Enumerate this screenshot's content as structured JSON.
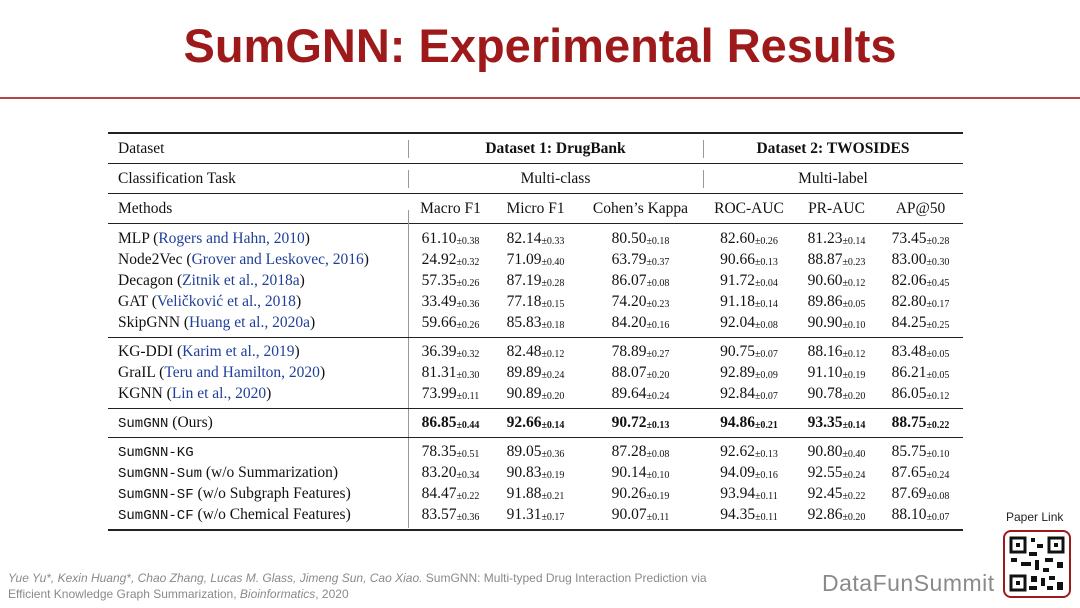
{
  "header": {
    "title": "SumGNN: Experimental Results"
  },
  "table": {
    "head": [
      {
        "cells": [
          "Dataset",
          "Dataset 1: DrugBank",
          "Dataset 2: TWOSIDES"
        ],
        "bold": true
      },
      {
        "cells": [
          "Classification Task",
          "Multi-class",
          "Multi-label"
        ]
      },
      {
        "cells": [
          "Methods",
          "Macro F1",
          "Micro F1",
          "Cohen’s Kappa",
          "ROC-AUC",
          "PR-AUC",
          "AP@50"
        ]
      }
    ],
    "groups": [
      {
        "rows": [
          {
            "method": [
              {
                "text": "MLP ("
              },
              {
                "link": "Rogers and Hahn, 2010"
              },
              {
                "text": ")"
              }
            ],
            "cells": [
              [
                "61.10",
                "±0.38"
              ],
              [
                "82.14",
                "±0.33"
              ],
              [
                "80.50",
                "±0.18"
              ],
              [
                "82.60",
                "±0.26"
              ],
              [
                "81.23",
                "±0.14"
              ],
              [
                "73.45",
                "±0.28"
              ]
            ]
          },
          {
            "method": [
              {
                "text": "Node2Vec ("
              },
              {
                "link": "Grover and Leskovec, 2016"
              },
              {
                "text": ")"
              }
            ],
            "cells": [
              [
                "24.92",
                "±0.32"
              ],
              [
                "71.09",
                "±0.40"
              ],
              [
                "63.79",
                "±0.37"
              ],
              [
                "90.66",
                "±0.13"
              ],
              [
                "88.87",
                "±0.23"
              ],
              [
                "83.00",
                "±0.30"
              ]
            ]
          },
          {
            "method": [
              {
                "text": "Decagon ("
              },
              {
                "link": "Zitnik et al., 2018a"
              },
              {
                "text": ")"
              }
            ],
            "cells": [
              [
                "57.35",
                "±0.26"
              ],
              [
                "87.19",
                "±0.28"
              ],
              [
                "86.07",
                "±0.08"
              ],
              [
                "91.72",
                "±0.04"
              ],
              [
                "90.60",
                "±0.12"
              ],
              [
                "82.06",
                "±0.45"
              ]
            ]
          },
          {
            "method": [
              {
                "text": "GAT ("
              },
              {
                "link": "Veličković et al., 2018"
              },
              {
                "text": ")"
              }
            ],
            "cells": [
              [
                "33.49",
                "±0.36"
              ],
              [
                "77.18",
                "±0.15"
              ],
              [
                "74.20",
                "±0.23"
              ],
              [
                "91.18",
                "±0.14"
              ],
              [
                "89.86",
                "±0.05"
              ],
              [
                "82.80",
                "±0.17"
              ]
            ]
          },
          {
            "method": [
              {
                "text": "SkipGNN ("
              },
              {
                "link": "Huang et al., 2020a"
              },
              {
                "text": ")"
              }
            ],
            "cells": [
              [
                "59.66",
                "±0.26"
              ],
              [
                "85.83",
                "±0.18"
              ],
              [
                "84.20",
                "±0.16"
              ],
              [
                "92.04",
                "±0.08"
              ],
              [
                "90.90",
                "±0.10"
              ],
              [
                "84.25",
                "±0.25"
              ]
            ]
          }
        ]
      },
      {
        "rows": [
          {
            "method": [
              {
                "text": "KG-DDI ("
              },
              {
                "link": "Karim et al., 2019"
              },
              {
                "text": ")"
              }
            ],
            "cells": [
              [
                "36.39",
                "±0.32"
              ],
              [
                "82.48",
                "±0.12"
              ],
              [
                "78.89",
                "±0.27"
              ],
              [
                "90.75",
                "±0.07"
              ],
              [
                "88.16",
                "±0.12"
              ],
              [
                "83.48",
                "±0.05"
              ]
            ]
          },
          {
            "method": [
              {
                "text": "GraIL ("
              },
              {
                "link": "Teru and Hamilton, 2020"
              },
              {
                "text": ")"
              }
            ],
            "cells": [
              [
                "81.31",
                "±0.30"
              ],
              [
                "89.89",
                "±0.24"
              ],
              [
                "88.07",
                "±0.20"
              ],
              [
                "92.89",
                "±0.09"
              ],
              [
                "91.10",
                "±0.19"
              ],
              [
                "86.21",
                "±0.05"
              ]
            ]
          },
          {
            "method": [
              {
                "text": "KGNN ("
              },
              {
                "link": "Lin et al., 2020"
              },
              {
                "text": ")"
              }
            ],
            "cells": [
              [
                "73.99",
                "±0.11"
              ],
              [
                "90.89",
                "±0.20"
              ],
              [
                "89.64",
                "±0.24"
              ],
              [
                "92.84",
                "±0.07"
              ],
              [
                "90.78",
                "±0.20"
              ],
              [
                "86.05",
                "±0.12"
              ]
            ]
          }
        ]
      },
      {
        "rows": [
          {
            "method": [
              {
                "mono": "SumGNN"
              },
              {
                "text": " (Ours)"
              }
            ],
            "bold": true,
            "cells": [
              [
                "86.85",
                "±0.44"
              ],
              [
                "92.66",
                "±0.14"
              ],
              [
                "90.72",
                "±0.13"
              ],
              [
                "94.86",
                "±0.21"
              ],
              [
                "93.35",
                "±0.14"
              ],
              [
                "88.75",
                "±0.22"
              ]
            ]
          }
        ]
      },
      {
        "rows": [
          {
            "method": [
              {
                "mono": "SumGNN-KG"
              }
            ],
            "cells": [
              [
                "78.35",
                "±0.51"
              ],
              [
                "89.05",
                "±0.36"
              ],
              [
                "87.28",
                "±0.08"
              ],
              [
                "92.62",
                "±0.13"
              ],
              [
                "90.80",
                "±0.40"
              ],
              [
                "85.75",
                "±0.10"
              ]
            ]
          },
          {
            "method": [
              {
                "mono": "SumGNN-Sum"
              },
              {
                "text": " (w/o Summarization)"
              }
            ],
            "cells": [
              [
                "83.20",
                "±0.34"
              ],
              [
                "90.83",
                "±0.19"
              ],
              [
                "90.14",
                "±0.10"
              ],
              [
                "94.09",
                "±0.16"
              ],
              [
                "92.55",
                "±0.24"
              ],
              [
                "87.65",
                "±0.24"
              ]
            ]
          },
          {
            "method": [
              {
                "mono": "SumGNN-SF"
              },
              {
                "text": " (w/o Subgraph Features)"
              }
            ],
            "cells": [
              [
                "84.47",
                "±0.22"
              ],
              [
                "91.88",
                "±0.21"
              ],
              [
                "90.26",
                "±0.19"
              ],
              [
                "93.94",
                "±0.11"
              ],
              [
                "92.45",
                "±0.22"
              ],
              [
                "87.69",
                "±0.08"
              ]
            ]
          },
          {
            "method": [
              {
                "mono": "SumGNN-CF"
              },
              {
                "text": " (w/o Chemical Features)"
              }
            ],
            "cells": [
              [
                "83.57",
                "±0.36"
              ],
              [
                "91.31",
                "±0.17"
              ],
              [
                "90.07",
                "±0.11"
              ],
              [
                "94.35",
                "±0.11"
              ],
              [
                "92.86",
                "±0.20"
              ],
              [
                "88.10",
                "±0.07"
              ]
            ]
          }
        ]
      }
    ]
  },
  "footer": {
    "citation": [
      {
        "italic": "Yue Yu*, Kexin Huang*, Chao Zhang, Lucas M. Glass, Jimeng Sun, Cao Xiao."
      },
      {
        "text": " SumGNN: Multi-typed Drug Interaction Prediction via Efficient Knowledge Graph Summarization, "
      },
      {
        "italic": "Bioinformatics"
      },
      {
        "text": ", 2020"
      }
    ],
    "brand": "DataFunSummit",
    "qr_label": "Paper Link"
  }
}
